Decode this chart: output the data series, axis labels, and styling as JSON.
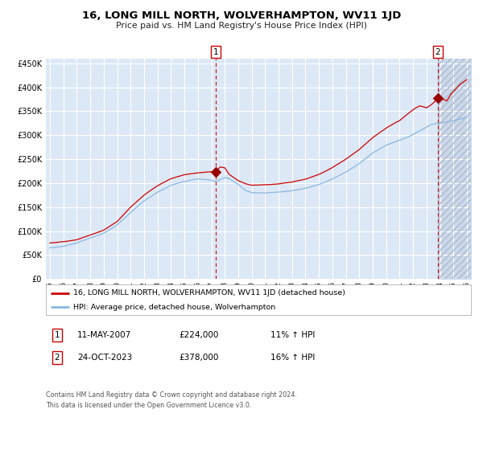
{
  "title": "16, LONG MILL NORTH, WOLVERHAMPTON, WV11 1JD",
  "subtitle": "Price paid vs. HM Land Registry's House Price Index (HPI)",
  "fig_bg_color": "#ffffff",
  "plot_bg_color": "#dce8f5",
  "hatch_bg_color": "#ccd8ea",
  "grid_color": "#ffffff",
  "red_line_color": "#cc0000",
  "blue_line_color": "#88b8e0",
  "marker1_date_idx": 148,
  "marker2_date_idx": 346,
  "marker1_value": 224000,
  "marker2_value": 378000,
  "vline_color": "#cc0000",
  "legend_entries": [
    "16, LONG MILL NORTH, WOLVERHAMPTON, WV11 1JD (detached house)",
    "HPI: Average price, detached house, Wolverhampton"
  ],
  "note1_label": "1",
  "note1_date": "11-MAY-2007",
  "note1_price": "£224,000",
  "note1_hpi": "11% ↑ HPI",
  "note2_label": "2",
  "note2_date": "24-OCT-2023",
  "note2_price": "£378,000",
  "note2_hpi": "16% ↑ HPI",
  "footer": "Contains HM Land Registry data © Crown copyright and database right 2024.\nThis data is licensed under the Open Government Licence v3.0.",
  "ylim": [
    0,
    460000
  ],
  "yticks": [
    0,
    50000,
    100000,
    150000,
    200000,
    250000,
    300000,
    350000,
    400000,
    450000
  ],
  "start_year": 1995,
  "end_year": 2026
}
